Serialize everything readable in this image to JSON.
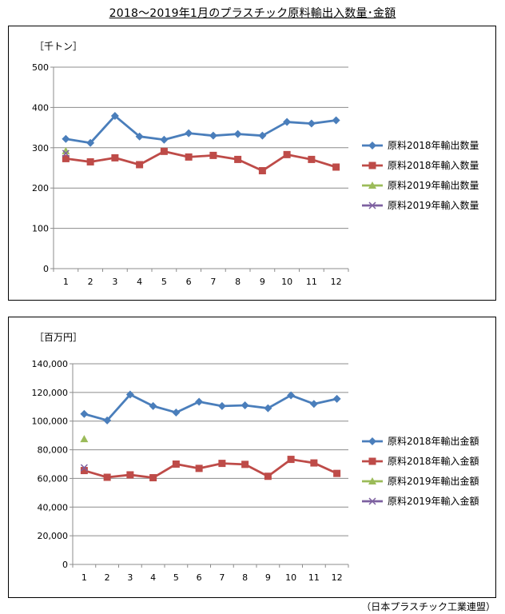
{
  "title": "2018～2019年1月のプラスチック原料輸出入数量･金額",
  "source": "（日本プラスチック工業連盟）",
  "chart_data": [
    {
      "type": "line",
      "unit_label": "［千トン］",
      "x": [
        "1",
        "2",
        "3",
        "4",
        "5",
        "6",
        "7",
        "8",
        "9",
        "10",
        "11",
        "12"
      ],
      "ylim": [
        0,
        500
      ],
      "yticks": [
        0,
        100,
        200,
        300,
        400,
        500
      ],
      "ytick_labels": [
        "0",
        "100",
        "200",
        "300",
        "400",
        "500"
      ],
      "grid": "horizontal",
      "legend": "right",
      "series": [
        {
          "name": "原料2018年輸出数量",
          "values": [
            322,
            312,
            379,
            328,
            320,
            336,
            330,
            334,
            330,
            364,
            360,
            368
          ],
          "color": "#4a7ebb",
          "marker": "diamond"
        },
        {
          "name": "原料2018年輸入数量",
          "values": [
            273,
            265,
            275,
            258,
            291,
            277,
            281,
            271,
            243,
            283,
            271,
            252
          ],
          "color": "#be4b48",
          "marker": "square"
        },
        {
          "name": "原料2019年輸出数量",
          "values": [
            292,
            null,
            null,
            null,
            null,
            null,
            null,
            null,
            null,
            null,
            null,
            null
          ],
          "color": "#9bbb59",
          "marker": "triangle"
        },
        {
          "name": "原料2019年輸入数量",
          "values": [
            286,
            null,
            null,
            null,
            null,
            null,
            null,
            null,
            null,
            null,
            null,
            null
          ],
          "color": "#7d60a0",
          "marker": "x"
        }
      ]
    },
    {
      "type": "line",
      "unit_label": "［百万円］",
      "x": [
        "1",
        "2",
        "3",
        "4",
        "5",
        "6",
        "7",
        "8",
        "9",
        "10",
        "11",
        "12"
      ],
      "ylim": [
        0,
        140000
      ],
      "yticks": [
        0,
        20000,
        40000,
        60000,
        80000,
        100000,
        120000,
        140000
      ],
      "ytick_labels": [
        "0",
        "20,000",
        "40,000",
        "60,000",
        "80,000",
        "100,000",
        "120,000",
        "140,000"
      ],
      "grid": "horizontal",
      "legend": "right",
      "series": [
        {
          "name": "原料2018年輸出金額",
          "values": [
            105000,
            100500,
            118500,
            110500,
            106000,
            113500,
            110500,
            111000,
            109000,
            118000,
            112000,
            115500
          ],
          "color": "#4a7ebb",
          "marker": "diamond"
        },
        {
          "name": "原料2018年輸入金額",
          "values": [
            65500,
            60800,
            62500,
            60500,
            70000,
            67000,
            70500,
            69800,
            61500,
            73300,
            70800,
            63500
          ],
          "color": "#be4b48",
          "marker": "square"
        },
        {
          "name": "原料2019年輸出金額",
          "values": [
            87500,
            null,
            null,
            null,
            null,
            null,
            null,
            null,
            null,
            null,
            null,
            null
          ],
          "color": "#9bbb59",
          "marker": "triangle"
        },
        {
          "name": "原料2019年輸入金額",
          "values": [
            67500,
            null,
            null,
            null,
            null,
            null,
            null,
            null,
            null,
            null,
            null,
            null
          ],
          "color": "#7d60a0",
          "marker": "x"
        }
      ]
    }
  ]
}
